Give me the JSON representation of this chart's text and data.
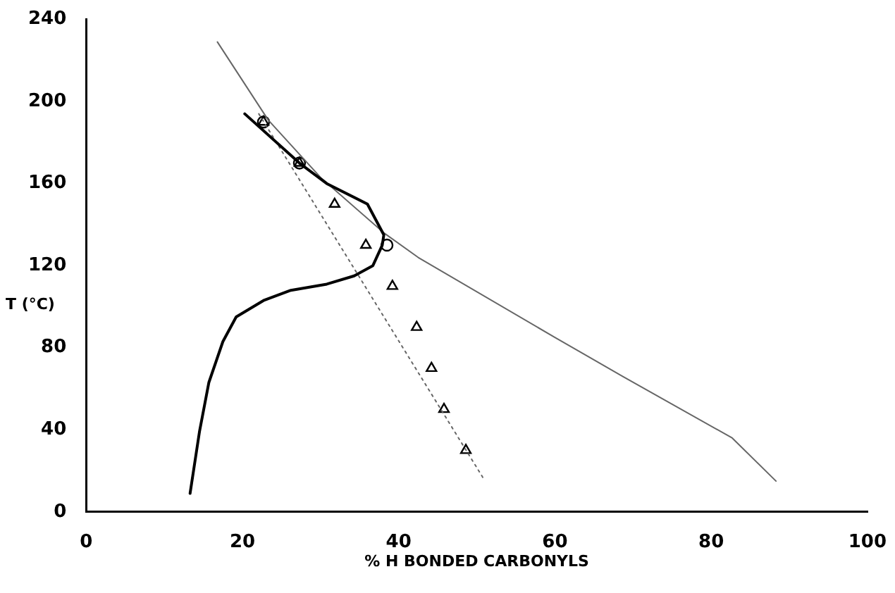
{
  "chart_data": {
    "type": "scatter",
    "xlabel": "% H BONDED CARBONYLS",
    "ylabel": "T (°C)",
    "xlim": [
      0,
      100
    ],
    "xticks": [
      0,
      20,
      40,
      60,
      80,
      100
    ],
    "ylim": [
      0,
      240
    ],
    "yticks": [
      0,
      40,
      80,
      120,
      160,
      200,
      240
    ],
    "grid": false,
    "legend": false,
    "series": [
      {
        "type": "line",
        "color": "#000000",
        "marker": "none",
        "line_style": "solid",
        "x": [
          20.3,
          27.3,
          30.8,
          36,
          38.1,
          37.9,
          36.7,
          34.3,
          30.8,
          26.2,
          22.7,
          19.2,
          17.5,
          15.7,
          14.5,
          13.3
        ],
        "values": [
          194,
          170,
          160,
          150,
          135,
          130,
          120,
          115,
          111,
          108,
          103,
          95,
          83,
          63,
          39,
          9
        ]
      },
      {
        "type": "line",
        "color": "#666666",
        "marker": "none",
        "line_style": "solid",
        "x": [
          16.8,
          23.3,
          30,
          38.1,
          42.5,
          60,
          68.7,
          82.7,
          88.3
        ],
        "values": [
          229,
          191,
          163,
          136,
          124,
          85,
          66,
          36,
          15
        ]
      },
      {
        "type": "line",
        "color": "#666666",
        "marker": "none",
        "line_style": "dotted",
        "x": [
          22.1,
          50.9
        ],
        "values": [
          194,
          16
        ]
      },
      {
        "type": "scatter",
        "color": "#000000",
        "marker": "circle",
        "x": [
          38.5,
          27.3,
          22.7
        ],
        "values": [
          130,
          170,
          190
        ]
      },
      {
        "type": "scatter",
        "color": "#000000",
        "marker": "triangle",
        "x": [
          48.6,
          45.8,
          44.2,
          42.3,
          39.2,
          35.8,
          31.8,
          27.3,
          22.7
        ],
        "values": [
          30,
          50,
          70,
          90,
          110,
          130,
          150,
          170,
          190
        ]
      }
    ]
  }
}
